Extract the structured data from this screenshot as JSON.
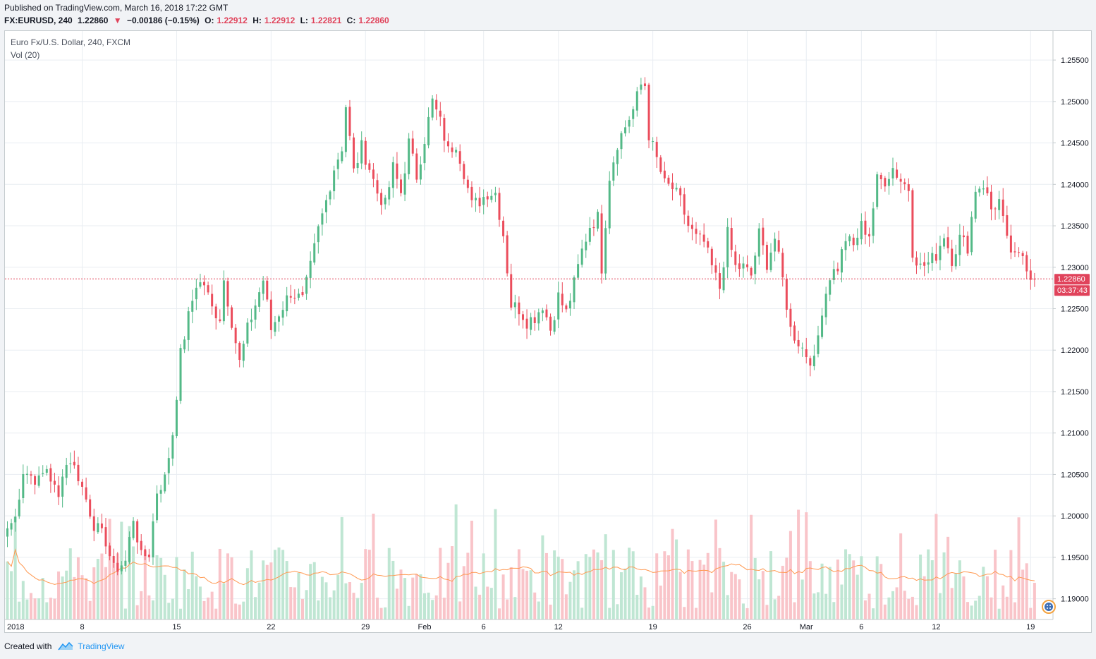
{
  "header": {
    "published": "Published on TradingView.com, March 16, 2018 17:22 GMT",
    "symbol": "FX:EURUSD, 240",
    "last": "1.22860",
    "change": "−0.00186 (−0.15%)",
    "o_label": "O:",
    "o_value": "1.22912",
    "h_label": "H:",
    "h_value": "1.22912",
    "l_label": "L:",
    "l_value": "1.22821",
    "c_label": "C:",
    "c_value": "1.22860"
  },
  "legend": {
    "series": "Euro Fx/U.S. Dollar, 240, FXCM",
    "volume": "Vol (20)"
  },
  "footer": {
    "created_with": "Created with",
    "brand": "TradingView"
  },
  "colors": {
    "up": "#53b987",
    "down": "#eb4d5c",
    "up_volume": "#bfe6d3",
    "down_volume": "#f9c4c9",
    "vol_ma": "#ff9850",
    "grid": "#e9edf2",
    "price_line": "#e0435b"
  },
  "chart_data": {
    "type": "candlestick",
    "symbol": "EURUSD",
    "interval": "240",
    "ylim": [
      1.1875,
      1.2585
    ],
    "y_ticks": [
      "1.25500",
      "1.25000",
      "1.24500",
      "1.24000",
      "1.23500",
      "1.23000",
      "1.22500",
      "1.22000",
      "1.21500",
      "1.21000",
      "1.20500",
      "1.20000",
      "1.19500",
      "1.19000"
    ],
    "x_ticks": [
      {
        "label": "2018",
        "bar": -2
      },
      {
        "label": "8",
        "bar": 19
      },
      {
        "label": "15",
        "bar": 43
      },
      {
        "label": "22",
        "bar": 67
      },
      {
        "label": "29",
        "bar": 91
      },
      {
        "label": "Feb",
        "bar": 106
      },
      {
        "label": "6",
        "bar": 121
      },
      {
        "label": "12",
        "bar": 140
      },
      {
        "label": "19",
        "bar": 164
      },
      {
        "label": "26",
        "bar": 188
      },
      {
        "label": "Mar",
        "bar": 203
      },
      {
        "label": "6",
        "bar": 217
      },
      {
        "label": "12",
        "bar": 236
      },
      {
        "label": "19",
        "bar": 260
      }
    ],
    "last_price": "1.22860",
    "countdown": "03:37:43",
    "close_anchors": [
      [
        0,
        1.1985
      ],
      [
        2,
        1.1998
      ],
      [
        4,
        1.2055
      ],
      [
        8,
        1.2042
      ],
      [
        10,
        1.2058
      ],
      [
        13,
        1.202
      ],
      [
        14,
        1.2055
      ],
      [
        16,
        1.2068
      ],
      [
        18,
        1.2048
      ],
      [
        20,
        1.202
      ],
      [
        22,
        1.199
      ],
      [
        25,
        1.197
      ],
      [
        27,
        1.1935
      ],
      [
        30,
        1.1945
      ],
      [
        32,
        1.1998
      ],
      [
        34,
        1.195
      ],
      [
        36,
        1.1955
      ],
      [
        38,
        1.203
      ],
      [
        40,
        1.2045
      ],
      [
        42,
        1.21
      ],
      [
        44,
        1.2195
      ],
      [
        46,
        1.224
      ],
      [
        48,
        1.228
      ],
      [
        50,
        1.228
      ],
      [
        52,
        1.225
      ],
      [
        54,
        1.224
      ],
      [
        55,
        1.2285
      ],
      [
        57,
        1.2235
      ],
      [
        59,
        1.2185
      ],
      [
        61,
        1.2225
      ],
      [
        63,
        1.2255
      ],
      [
        65,
        1.2285
      ],
      [
        67,
        1.2225
      ],
      [
        69,
        1.2245
      ],
      [
        72,
        1.227
      ],
      [
        75,
        1.226
      ],
      [
        77,
        1.23
      ],
      [
        79,
        1.2345
      ],
      [
        81,
        1.238
      ],
      [
        83,
        1.242
      ],
      [
        85,
        1.2445
      ],
      [
        86,
        1.2495
      ],
      [
        88,
        1.2415
      ],
      [
        90,
        1.2445
      ],
      [
        92,
        1.242
      ],
      [
        94,
        1.239
      ],
      [
        96,
        1.2375
      ],
      [
        98,
        1.242
      ],
      [
        100,
        1.239
      ],
      [
        102,
        1.245
      ],
      [
        104,
        1.241
      ],
      [
        106,
        1.2455
      ],
      [
        108,
        1.25
      ],
      [
        110,
        1.2475
      ],
      [
        112,
        1.244
      ],
      [
        114,
        1.245
      ],
      [
        116,
        1.2415
      ],
      [
        118,
        1.2375
      ],
      [
        120,
        1.238
      ],
      [
        122,
        1.239
      ],
      [
        124,
        1.239
      ],
      [
        126,
        1.234
      ],
      [
        128,
        1.2255
      ],
      [
        130,
        1.225
      ],
      [
        132,
        1.2235
      ],
      [
        134,
        1.224
      ],
      [
        136,
        1.2255
      ],
      [
        138,
        1.2225
      ],
      [
        140,
        1.2265
      ],
      [
        142,
        1.2245
      ],
      [
        144,
        1.228
      ],
      [
        146,
        1.232
      ],
      [
        148,
        1.235
      ],
      [
        150,
        1.236
      ],
      [
        151,
        1.23
      ],
      [
        153,
        1.241
      ],
      [
        155,
        1.245
      ],
      [
        157,
        1.247
      ],
      [
        159,
        1.249
      ],
      [
        161,
        1.252
      ],
      [
        162,
        1.252
      ],
      [
        163,
        1.246
      ],
      [
        165,
        1.243
      ],
      [
        167,
        1.24
      ],
      [
        169,
        1.2395
      ],
      [
        171,
        1.238
      ],
      [
        173,
        1.235
      ],
      [
        175,
        1.2335
      ],
      [
        177,
        1.233
      ],
      [
        179,
        1.23
      ],
      [
        181,
        1.2275
      ],
      [
        183,
        1.234
      ],
      [
        185,
        1.23
      ],
      [
        187,
        1.23
      ],
      [
        189,
        1.229
      ],
      [
        191,
        1.234
      ],
      [
        193,
        1.2305
      ],
      [
        195,
        1.2335
      ],
      [
        197,
        1.2285
      ],
      [
        199,
        1.2225
      ],
      [
        201,
        1.221
      ],
      [
        203,
        1.2195
      ],
      [
        205,
        1.2185
      ],
      [
        207,
        1.225
      ],
      [
        209,
        1.229
      ],
      [
        211,
        1.23
      ],
      [
        213,
        1.2335
      ],
      [
        215,
        1.2325
      ],
      [
        217,
        1.235
      ],
      [
        219,
        1.234
      ],
      [
        221,
        1.2405
      ],
      [
        223,
        1.2405
      ],
      [
        225,
        1.242
      ],
      [
        227,
        1.2405
      ],
      [
        229,
        1.2395
      ],
      [
        230,
        1.232
      ],
      [
        232,
        1.23
      ],
      [
        234,
        1.2305
      ],
      [
        236,
        1.2315
      ],
      [
        238,
        1.234
      ],
      [
        240,
        1.231
      ],
      [
        242,
        1.2335
      ],
      [
        244,
        1.2325
      ],
      [
        246,
        1.2395
      ],
      [
        248,
        1.24
      ],
      [
        250,
        1.237
      ],
      [
        252,
        1.238
      ],
      [
        254,
        1.233
      ],
      [
        256,
        1.231
      ],
      [
        258,
        1.2315
      ],
      [
        260,
        1.229
      ],
      [
        261,
        1.2286
      ]
    ],
    "volume_ma_period": 20
  }
}
